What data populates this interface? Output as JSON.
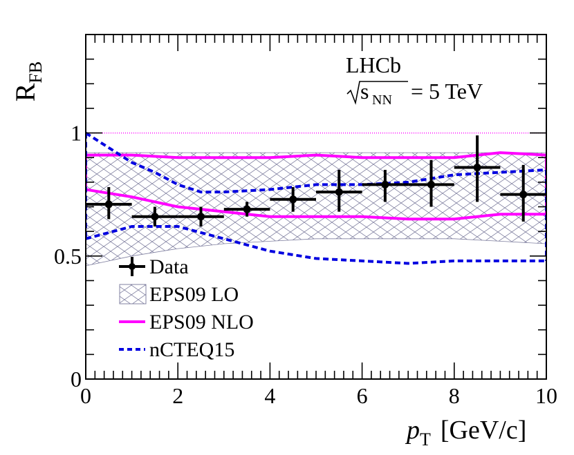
{
  "chart_data": {
    "type": "line",
    "title": "",
    "experiment_label": "LHCb",
    "energy_label": {
      "symbol": "s",
      "subscript": "NN",
      "value": "= 5 TeV"
    },
    "ylabel": {
      "main": "R",
      "sub": "FB"
    },
    "xlabel": {
      "main": "p",
      "sub": "T",
      "unit": "[GeV/c]"
    },
    "xlim": [
      0,
      10
    ],
    "ylim": [
      0,
      1.4
    ],
    "xticks": [
      0,
      2,
      4,
      6,
      8,
      10
    ],
    "xtick_labels": [
      "0",
      "2",
      "4",
      "6",
      "8",
      "10"
    ],
    "yticks": [
      0,
      0.5,
      1
    ],
    "ytick_labels": [
      "0",
      "0.5",
      "1"
    ],
    "reference_line": 1.0,
    "legend_position": "bottom-left",
    "legend": [
      "Data",
      "EPS09 LO",
      "EPS09 NLO",
      "nCTEQ15"
    ],
    "data_points": [
      {
        "x": 0.5,
        "xerr": 0.5,
        "y": 0.71,
        "ylo": 0.65,
        "yhi": 0.78
      },
      {
        "x": 1.5,
        "xerr": 0.5,
        "y": 0.66,
        "ylo": 0.62,
        "yhi": 0.7
      },
      {
        "x": 2.5,
        "xerr": 0.5,
        "y": 0.66,
        "ylo": 0.62,
        "yhi": 0.7
      },
      {
        "x": 3.5,
        "xerr": 0.5,
        "y": 0.69,
        "ylo": 0.66,
        "yhi": 0.72
      },
      {
        "x": 4.5,
        "xerr": 0.5,
        "y": 0.73,
        "ylo": 0.68,
        "yhi": 0.78
      },
      {
        "x": 5.5,
        "xerr": 0.5,
        "y": 0.76,
        "ylo": 0.68,
        "yhi": 0.85
      },
      {
        "x": 6.5,
        "xerr": 0.5,
        "y": 0.79,
        "ylo": 0.72,
        "yhi": 0.85
      },
      {
        "x": 7.5,
        "xerr": 0.5,
        "y": 0.79,
        "ylo": 0.7,
        "yhi": 0.89
      },
      {
        "x": 8.5,
        "xerr": 0.5,
        "y": 0.86,
        "ylo": 0.72,
        "yhi": 0.99
      },
      {
        "x": 9.5,
        "xerr": 0.5,
        "y": 0.75,
        "ylo": 0.64,
        "yhi": 0.87
      }
    ],
    "eps09_lo_band": {
      "x": [
        0,
        1,
        2,
        3,
        4,
        5,
        6,
        7,
        8,
        9,
        10
      ],
      "upper": [
        0.92,
        0.92,
        0.92,
        0.92,
        0.92,
        0.92,
        0.92,
        0.92,
        0.92,
        0.92,
        0.92
      ],
      "lower": [
        0.46,
        0.5,
        0.53,
        0.55,
        0.56,
        0.57,
        0.57,
        0.57,
        0.57,
        0.56,
        0.55
      ]
    },
    "eps09_nlo_upper": {
      "x": [
        0,
        1,
        2,
        3,
        4,
        5,
        6,
        7,
        8,
        9,
        10
      ],
      "y": [
        0.91,
        0.91,
        0.9,
        0.9,
        0.9,
        0.91,
        0.9,
        0.9,
        0.9,
        0.92,
        0.91
      ]
    },
    "eps09_nlo_lower": {
      "x": [
        0,
        1,
        2,
        3,
        4,
        5,
        6,
        7,
        8,
        9,
        10
      ],
      "y": [
        0.77,
        0.74,
        0.7,
        0.68,
        0.66,
        0.66,
        0.66,
        0.65,
        0.65,
        0.67,
        0.67
      ]
    },
    "ncteq15_upper": {
      "x": [
        0,
        1,
        1.5,
        2,
        2.5,
        3,
        4,
        5,
        6,
        7,
        8,
        9,
        10
      ],
      "y": [
        1.0,
        0.88,
        0.84,
        0.79,
        0.76,
        0.76,
        0.77,
        0.79,
        0.79,
        0.8,
        0.83,
        0.84,
        0.85
      ]
    },
    "ncteq15_lower": {
      "x": [
        0,
        1,
        2,
        3,
        4,
        5,
        6,
        7,
        8,
        9,
        10
      ],
      "y": [
        0.57,
        0.62,
        0.62,
        0.57,
        0.52,
        0.49,
        0.48,
        0.47,
        0.48,
        0.48,
        0.48
      ]
    },
    "colors": {
      "data": "#000000",
      "eps09_lo": "#8080a0",
      "eps09_nlo": "#ff00ff",
      "ncteq15": "#0000e0",
      "reference": "#ff00ff"
    }
  }
}
